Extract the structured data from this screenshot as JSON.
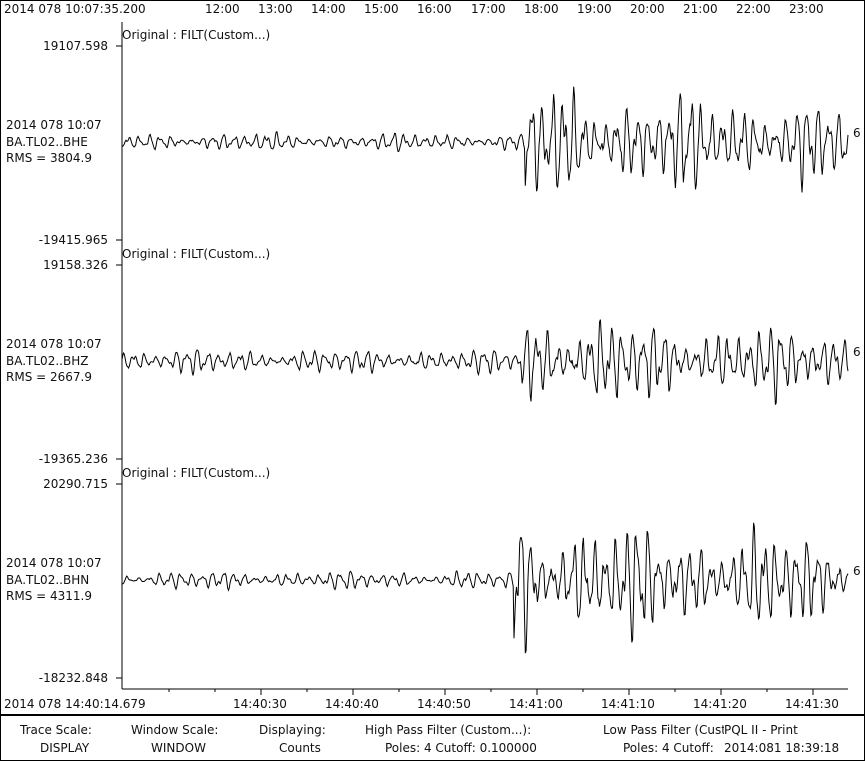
{
  "header": {
    "start_time": "2014 078 10:07:35.200",
    "hour_ticks": [
      "12:00",
      "13:00",
      "14:00",
      "15:00",
      "16:00",
      "17:00",
      "18:00",
      "19:00",
      "20:00",
      "21:00",
      "22:00",
      "23:00"
    ]
  },
  "traces": [
    {
      "title": "Original : FILT(Custom...)",
      "max": "19107.598",
      "min": "-19415.965",
      "date": "2014 078 10:07",
      "station": "BA.TL02..BHE",
      "rms": "RMS = 3804.9",
      "right_label": "6",
      "seed": 11,
      "amp_pre": 0.12,
      "amp_post": 0.75,
      "onset": 0.555
    },
    {
      "title": "Original : FILT(Custom...)",
      "max": "19158.326",
      "min": "-19365.236",
      "date": "2014 078 10:07",
      "station": "BA.TL02..BHZ",
      "rms": "RMS = 2667.9",
      "right_label": "6",
      "seed": 23,
      "amp_pre": 0.16,
      "amp_post": 0.62,
      "onset": 0.55
    },
    {
      "title": "Original : FILT(Custom...)",
      "max": "20290.715",
      "min": "-18232.848",
      "date": "2014 078 10:07",
      "station": "BA.TL02..BHN",
      "rms": "RMS = 4311.9",
      "right_label": "6",
      "seed": 37,
      "amp_pre": 0.12,
      "amp_post": 0.85,
      "onset": 0.54
    }
  ],
  "footer_axis": {
    "start_time": "2014 078 14:40:14.679",
    "ticks": [
      "14:40:30",
      "14:40:40",
      "14:40:50",
      "14:41:00",
      "14:41:10",
      "14:41:20",
      "14:41:30"
    ]
  },
  "status": {
    "trace_scale_label": "Trace Scale:",
    "trace_scale_value": "DISPLAY",
    "window_scale_label": "Window Scale:",
    "window_scale_value": "WINDOW",
    "displaying_label": "Displaying:",
    "displaying_value": "Counts",
    "hp_label": "High Pass Filter (Custom...):",
    "hp_value": "Poles: 4  Cutoff: 0.100000",
    "lp_label": "Low Pass Filter (Cust",
    "lp_value": "Poles: 4  Cutoff: ",
    "app_name": "PQL II - Print",
    "print_time": "2014:081 18:39:18"
  },
  "colors": {
    "trace": "#000000",
    "background": "#ffffff"
  }
}
